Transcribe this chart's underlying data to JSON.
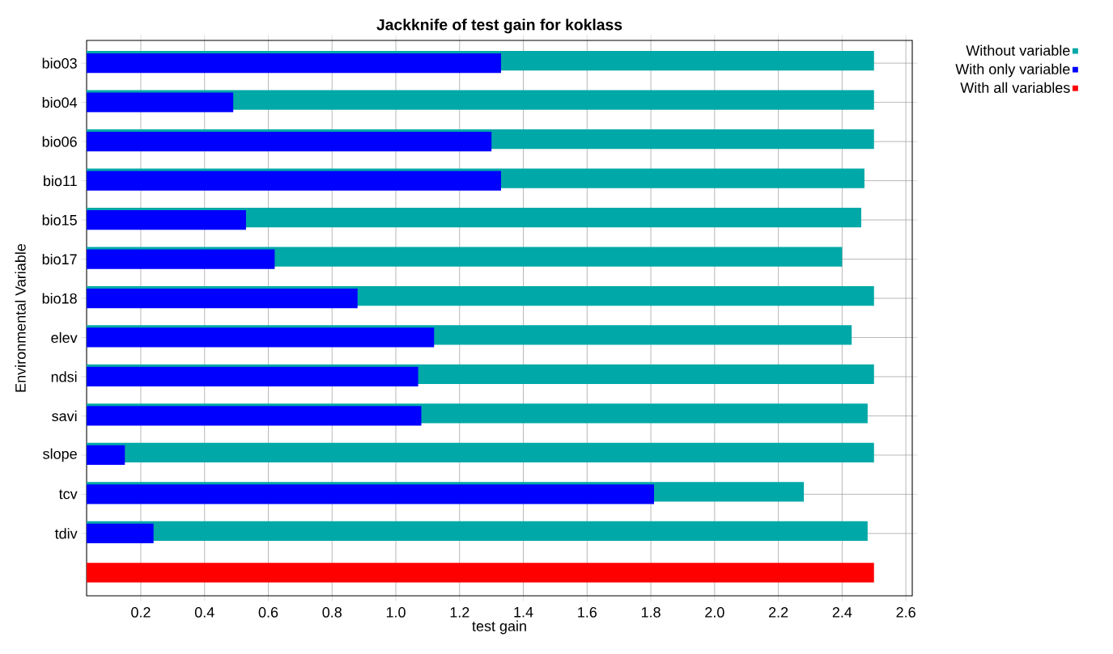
{
  "chart_data": {
    "type": "bar",
    "orientation": "horizontal",
    "title": "Jackknife of test gain for koklass",
    "xlabel": "test gain",
    "ylabel": "Environmental Variable",
    "categories": [
      "bio03",
      "bio04",
      "bio06",
      "bio11",
      "bio15",
      "bio17",
      "bio18",
      "elev",
      "ndsi",
      "savi",
      "slope",
      "tcv",
      "tdiv",
      null
    ],
    "series": [
      {
        "name": "Without variable",
        "color": "#00a8a8",
        "values": [
          2.5,
          2.5,
          2.5,
          2.47,
          2.46,
          2.4,
          2.5,
          2.43,
          2.5,
          2.48,
          2.5,
          2.28,
          2.48,
          null
        ]
      },
      {
        "name": "With only variable",
        "color": "#0000ff",
        "values": [
          1.33,
          0.49,
          1.3,
          1.33,
          0.53,
          0.62,
          0.88,
          1.12,
          1.07,
          1.08,
          0.15,
          1.81,
          0.24,
          null
        ]
      },
      {
        "name": "With all variables",
        "color": "#ff0000",
        "values": [
          null,
          null,
          null,
          null,
          null,
          null,
          null,
          null,
          null,
          null,
          null,
          null,
          null,
          2.5
        ]
      }
    ],
    "xlim": [
      0.03,
      2.62
    ],
    "xticks": [
      0.2,
      0.4,
      0.6,
      0.8,
      {
        "value": 1,
        "label": "1.0"
      },
      1.2,
      1.4,
      1.6,
      1.8,
      {
        "value": 2,
        "label": "2.0"
      },
      2.2,
      2.4,
      2.6
    ],
    "grid": true,
    "legend": "top right"
  }
}
